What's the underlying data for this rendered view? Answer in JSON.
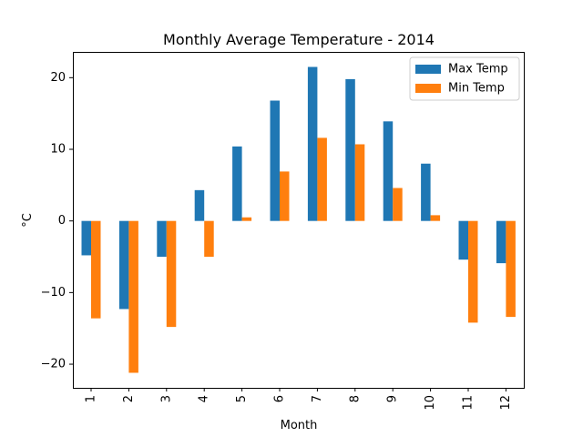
{
  "chart_data": {
    "type": "bar",
    "title": "Monthly Average Temperature - 2014",
    "xlabel": "Month",
    "ylabel": "°C",
    "categories": [
      "1",
      "2",
      "3",
      "4",
      "5",
      "6",
      "7",
      "8",
      "9",
      "10",
      "11",
      "12"
    ],
    "series": [
      {
        "name": "Max Temp",
        "color": "#1f77b4",
        "values": [
          -4.8,
          -12.3,
          -5.0,
          4.3,
          10.4,
          16.8,
          21.5,
          19.8,
          13.9,
          8.0,
          -5.4,
          -5.9
        ]
      },
      {
        "name": "Min Temp",
        "color": "#ff7f0e",
        "values": [
          -13.6,
          -21.2,
          -14.8,
          -5.0,
          0.5,
          6.9,
          11.6,
          10.7,
          4.6,
          0.8,
          -14.2,
          -13.4
        ]
      }
    ],
    "ylim": [
      -23.3,
      23.6
    ],
    "yticks": [
      -20,
      -10,
      0,
      10,
      20
    ],
    "ytick_labels": [
      "−20",
      "−10",
      "0",
      "10",
      "20"
    ],
    "legend_position": "top-right",
    "grid": false,
    "xtick_rotation": "vertical"
  }
}
